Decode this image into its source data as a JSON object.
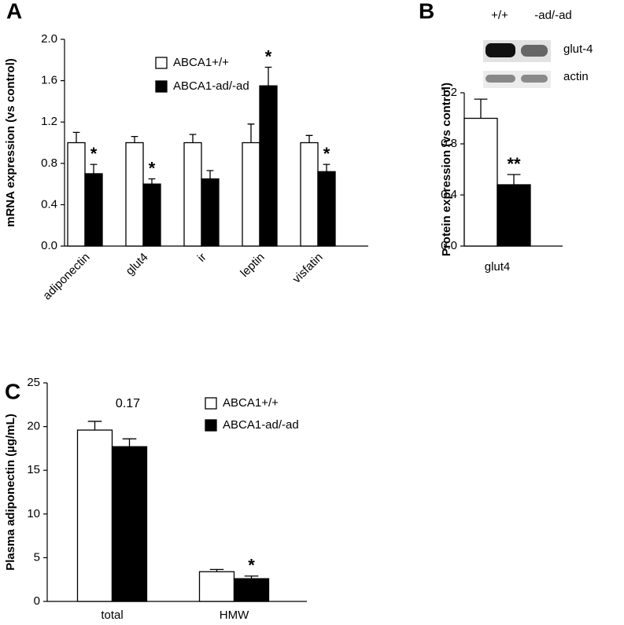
{
  "chart_data": [
    {
      "type": "bar",
      "panel": "A",
      "ylabel": "mRNA expression (vs control)",
      "categories": [
        "adiponectin",
        "glut4",
        "ir",
        "leptin",
        "visfatin"
      ],
      "series": [
        {
          "name": "ABCA1+/+",
          "color": "#ffffff",
          "values": [
            1.0,
            1.0,
            1.0,
            1.0,
            1.0
          ],
          "errors": [
            0.1,
            0.06,
            0.08,
            0.18,
            0.07
          ],
          "significance": [
            null,
            null,
            null,
            null,
            null
          ]
        },
        {
          "name": "ABCA1-ad/-ad",
          "color": "#000000",
          "values": [
            0.7,
            0.6,
            0.65,
            1.55,
            0.72
          ],
          "errors": [
            0.09,
            0.05,
            0.08,
            0.18,
            0.07
          ],
          "significance": [
            "*",
            "*",
            null,
            "*",
            "*"
          ]
        }
      ],
      "ylim": [
        0,
        2
      ],
      "yticks": [
        {
          "value": 0,
          "label": "0.0"
        },
        0.4,
        0.8,
        1.2,
        1.6,
        {
          "value": 2,
          "label": "2.0"
        }
      ],
      "legend": true
    },
    {
      "type": "bar",
      "panel": "B",
      "ylabel": "Protein expression (vs control)",
      "categories": [
        "glut4"
      ],
      "series": [
        {
          "name": "+/+",
          "color": "#ffffff",
          "values": [
            1.0
          ],
          "errors": [
            0.15
          ],
          "significance": [
            null
          ]
        },
        {
          "name": "-ad/-ad",
          "color": "#000000",
          "values": [
            0.48
          ],
          "errors": [
            0.08
          ],
          "significance": [
            "**"
          ]
        }
      ],
      "ylim": [
        0,
        1.2
      ],
      "yticks": [
        {
          "value": 0,
          "label": "0.0"
        },
        0.4,
        0.8,
        1.2
      ],
      "legend": false,
      "blot": {
        "bands": [
          "glut-4",
          "actin"
        ]
      }
    },
    {
      "type": "bar",
      "panel": "C",
      "ylabel": "Plasma adiponectin (µg/mL)",
      "categories": [
        "total",
        "HMW"
      ],
      "series": [
        {
          "name": "ABCA1+/+",
          "color": "#ffffff",
          "values": [
            19.6,
            3.4
          ],
          "errors": [
            1.0,
            0.25
          ],
          "significance": [
            null,
            null
          ]
        },
        {
          "name": "ABCA1-ad/-ad",
          "color": "#000000",
          "values": [
            17.7,
            2.6
          ],
          "errors": [
            0.9,
            0.3
          ],
          "significance": [
            null,
            "*"
          ]
        }
      ],
      "p_value_labels": [
        "0.17",
        null
      ],
      "ylim": [
        0,
        25
      ],
      "yticks": [
        0,
        5,
        10,
        15,
        20,
        25
      ],
      "legend": true
    }
  ]
}
